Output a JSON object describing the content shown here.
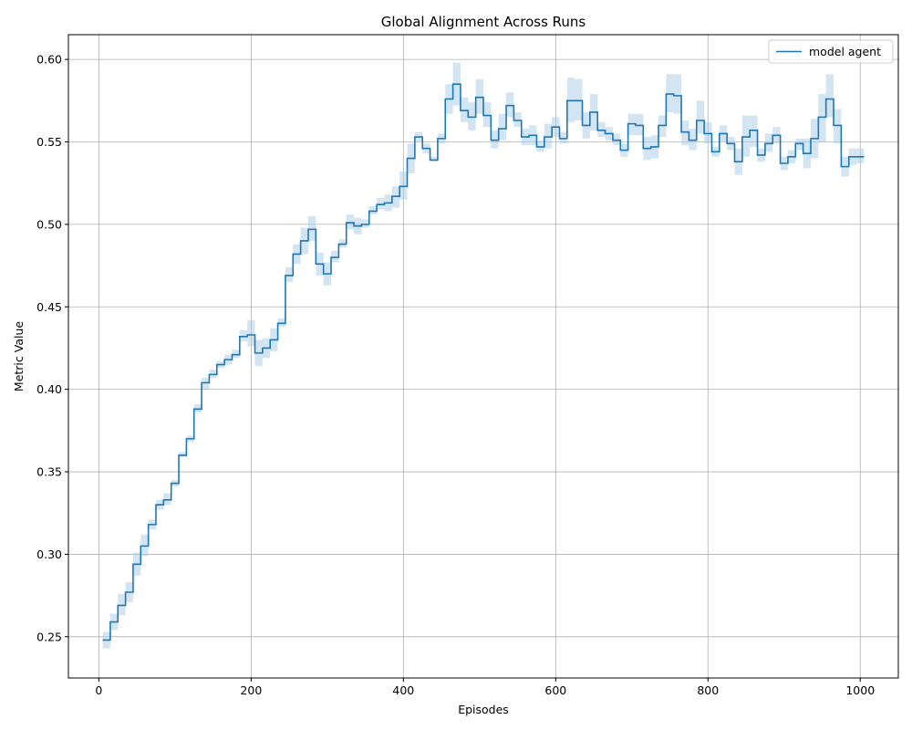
{
  "chart_data": {
    "type": "line",
    "title": "Global Alignment Across Runs",
    "xlabel": "Episodes",
    "ylabel": "Metric Value",
    "xlim": [
      -40,
      1050
    ],
    "ylim": [
      0.225,
      0.615
    ],
    "xticks": [
      0,
      200,
      400,
      600,
      800,
      1000
    ],
    "yticks": [
      0.25,
      0.3,
      0.35,
      0.4,
      0.45,
      0.5,
      0.55,
      0.6
    ],
    "grid": true,
    "legend_position": "top-right",
    "series": [
      {
        "name": "model agent",
        "color": "#1f77b4",
        "band_color": "#a8cbe6",
        "x": [
          10,
          20,
          30,
          40,
          50,
          60,
          70,
          80,
          90,
          100,
          110,
          120,
          130,
          140,
          150,
          160,
          170,
          180,
          190,
          200,
          210,
          220,
          230,
          240,
          250,
          260,
          270,
          280,
          290,
          300,
          310,
          320,
          330,
          340,
          350,
          360,
          370,
          380,
          390,
          400,
          410,
          420,
          430,
          440,
          450,
          460,
          470,
          480,
          490,
          500,
          510,
          520,
          530,
          540,
          550,
          560,
          570,
          580,
          590,
          600,
          610,
          620,
          630,
          640,
          650,
          660,
          670,
          680,
          690,
          700,
          710,
          720,
          730,
          740,
          750,
          760,
          770,
          780,
          790,
          800,
          810,
          820,
          830,
          840,
          850,
          860,
          870,
          880,
          890,
          900,
          910,
          920,
          930,
          940,
          950,
          960,
          970,
          980,
          990,
          1000
        ],
        "values": [
          0.248,
          0.259,
          0.269,
          0.277,
          0.294,
          0.305,
          0.318,
          0.33,
          0.333,
          0.343,
          0.36,
          0.37,
          0.388,
          0.404,
          0.409,
          0.415,
          0.418,
          0.421,
          0.432,
          0.433,
          0.422,
          0.425,
          0.43,
          0.44,
          0.469,
          0.482,
          0.49,
          0.497,
          0.476,
          0.47,
          0.48,
          0.488,
          0.501,
          0.499,
          0.5,
          0.508,
          0.512,
          0.513,
          0.517,
          0.523,
          0.54,
          0.553,
          0.546,
          0.539,
          0.552,
          0.576,
          0.585,
          0.569,
          0.565,
          0.577,
          0.566,
          0.551,
          0.558,
          0.572,
          0.563,
          0.553,
          0.554,
          0.547,
          0.553,
          0.559,
          0.552,
          0.575,
          0.575,
          0.56,
          0.568,
          0.557,
          0.555,
          0.551,
          0.545,
          0.561,
          0.56,
          0.546,
          0.547,
          0.56,
          0.579,
          0.578,
          0.556,
          0.551,
          0.563,
          0.555,
          0.544,
          0.555,
          0.549,
          0.538,
          0.553,
          0.557,
          0.542,
          0.549,
          0.554,
          0.537,
          0.541,
          0.549,
          0.543,
          0.552,
          0.565,
          0.576,
          0.56,
          0.535,
          0.541,
          0.541
        ],
        "lower": [
          0.243,
          0.254,
          0.263,
          0.271,
          0.287,
          0.299,
          0.315,
          0.327,
          0.33,
          0.341,
          0.359,
          0.368,
          0.386,
          0.4,
          0.407,
          0.413,
          0.415,
          0.419,
          0.429,
          0.426,
          0.414,
          0.419,
          0.423,
          0.438,
          0.465,
          0.476,
          0.482,
          0.49,
          0.469,
          0.463,
          0.477,
          0.486,
          0.497,
          0.494,
          0.498,
          0.506,
          0.509,
          0.508,
          0.51,
          0.515,
          0.531,
          0.55,
          0.543,
          0.538,
          0.549,
          0.567,
          0.572,
          0.562,
          0.557,
          0.567,
          0.559,
          0.546,
          0.551,
          0.565,
          0.559,
          0.548,
          0.548,
          0.544,
          0.546,
          0.553,
          0.549,
          0.562,
          0.563,
          0.552,
          0.557,
          0.553,
          0.551,
          0.548,
          0.541,
          0.554,
          0.554,
          0.539,
          0.54,
          0.553,
          0.568,
          0.567,
          0.548,
          0.545,
          0.555,
          0.549,
          0.541,
          0.55,
          0.545,
          0.53,
          0.541,
          0.547,
          0.538,
          0.544,
          0.549,
          0.533,
          0.537,
          0.545,
          0.534,
          0.54,
          0.55,
          0.565,
          0.549,
          0.529,
          0.536,
          0.537
        ],
        "upper": [
          0.253,
          0.264,
          0.276,
          0.283,
          0.301,
          0.312,
          0.321,
          0.333,
          0.337,
          0.345,
          0.362,
          0.372,
          0.391,
          0.407,
          0.412,
          0.417,
          0.421,
          0.424,
          0.436,
          0.442,
          0.43,
          0.431,
          0.437,
          0.443,
          0.474,
          0.488,
          0.498,
          0.505,
          0.483,
          0.477,
          0.484,
          0.491,
          0.506,
          0.504,
          0.503,
          0.511,
          0.516,
          0.518,
          0.523,
          0.532,
          0.549,
          0.556,
          0.549,
          0.541,
          0.555,
          0.585,
          0.598,
          0.577,
          0.574,
          0.588,
          0.574,
          0.557,
          0.567,
          0.58,
          0.568,
          0.558,
          0.56,
          0.551,
          0.561,
          0.565,
          0.556,
          0.589,
          0.588,
          0.568,
          0.579,
          0.562,
          0.559,
          0.555,
          0.549,
          0.567,
          0.567,
          0.553,
          0.554,
          0.566,
          0.591,
          0.591,
          0.563,
          0.558,
          0.575,
          0.562,
          0.547,
          0.56,
          0.553,
          0.546,
          0.566,
          0.566,
          0.546,
          0.555,
          0.559,
          0.541,
          0.545,
          0.552,
          0.552,
          0.564,
          0.579,
          0.591,
          0.57,
          0.541,
          0.546,
          0.546
        ]
      }
    ]
  }
}
